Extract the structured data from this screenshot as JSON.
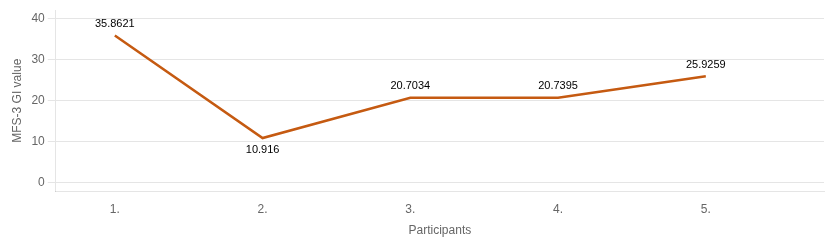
{
  "chart_data": {
    "type": "line",
    "x": [
      1,
      2,
      3,
      4,
      5
    ],
    "values": [
      35.8621,
      10.916,
      20.7034,
      20.7395,
      25.9259
    ],
    "color": "#C55A11",
    "marker": "none",
    "xlabel": "Participants",
    "ylabel": "MFS-3 GI value",
    "xlim": [
      0.6,
      5.8
    ],
    "xticks": [
      {
        "value": 1,
        "label": "1."
      },
      {
        "value": 2,
        "label": "2."
      },
      {
        "value": 3,
        "label": "3."
      },
      {
        "value": 4,
        "label": "4."
      },
      {
        "value": 5,
        "label": "5."
      }
    ],
    "ylim": [
      -2,
      42
    ],
    "yticks": [
      0,
      10,
      20,
      30,
      40
    ],
    "grid": true,
    "data_labels": true
  }
}
